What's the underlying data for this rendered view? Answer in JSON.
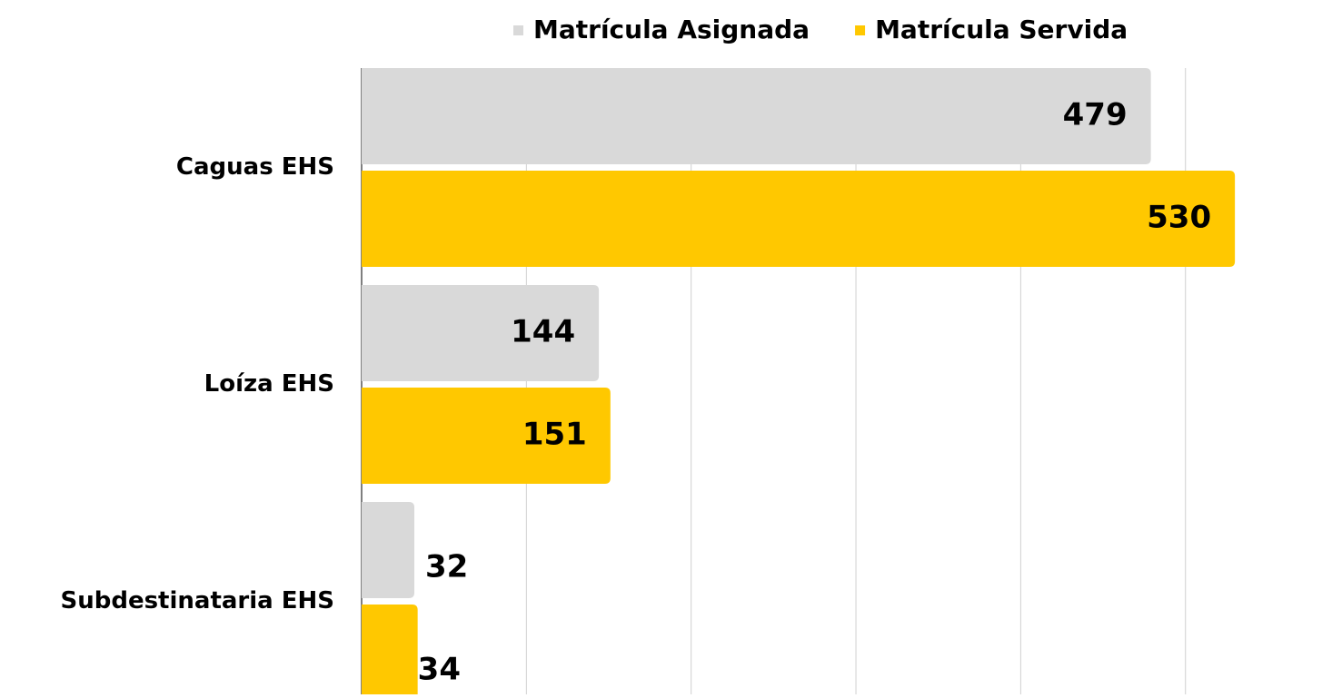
{
  "chart_data": {
    "type": "bar",
    "orientation": "horizontal",
    "categories": [
      "Caguas EHS",
      "Loíza EHS",
      "Subdestinataria EHS"
    ],
    "series": [
      {
        "name": "Matrícula Asignada",
        "color": "#d9d9d9",
        "values": [
          479,
          144,
          32
        ]
      },
      {
        "name": "Matrícula Servida",
        "color": "#ffc800",
        "values": [
          530,
          151,
          34
        ]
      }
    ],
    "xlim": [
      0,
      595
    ],
    "xticks": [
      0,
      100,
      200,
      300,
      400,
      500
    ],
    "grid": true,
    "legend": "top"
  }
}
